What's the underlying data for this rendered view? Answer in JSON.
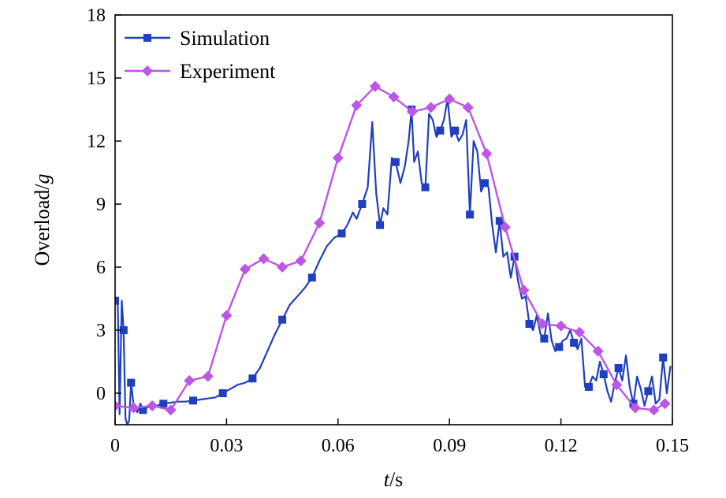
{
  "chart_data": {
    "type": "line",
    "xlabel_italic": "t",
    "xlabel_rest": "/s",
    "ylabel_main": "Overload/",
    "ylabel_italic": "g",
    "xlim": [
      0,
      0.15
    ],
    "ylim": [
      -1.5,
      18
    ],
    "xticks": [
      "0",
      "0.03",
      "0.06",
      "0.09",
      "0.12",
      "0.15"
    ],
    "xtick_values": [
      0,
      0.03,
      0.06,
      0.09,
      0.12,
      0.15
    ],
    "yticks": [
      "0",
      "3",
      "6",
      "9",
      "12",
      "15",
      "18"
    ],
    "ytick_values": [
      0,
      3,
      6,
      9,
      12,
      15,
      18
    ],
    "legend_position": "top-left",
    "grid": false,
    "series": [
      {
        "name": "Simulation",
        "color": "#1f3fbf",
        "marker": "square",
        "x": [
          0,
          0.0007,
          0.0012,
          0.0018,
          0.0023,
          0.0028,
          0.0033,
          0.0038,
          0.0043,
          0.005,
          0.006,
          0.0068,
          0.0075,
          0.0085,
          0.0095,
          0.011,
          0.013,
          0.015,
          0.017,
          0.019,
          0.021,
          0.023,
          0.025,
          0.027,
          0.029,
          0.031,
          0.033,
          0.035,
          0.037,
          0.039,
          0.041,
          0.043,
          0.045,
          0.047,
          0.049,
          0.051,
          0.053,
          0.055,
          0.057,
          0.059,
          0.061,
          0.0625,
          0.064,
          0.065,
          0.0665,
          0.068,
          0.0692,
          0.0703,
          0.0713,
          0.0722,
          0.0733,
          0.0745,
          0.0755,
          0.0768,
          0.078,
          0.079,
          0.0798,
          0.0805,
          0.0815,
          0.0825,
          0.0835,
          0.0845,
          0.0855,
          0.0865,
          0.0875,
          0.0885,
          0.0895,
          0.0905,
          0.0915,
          0.0925,
          0.0935,
          0.0945,
          0.0955,
          0.0965,
          0.0975,
          0.0985,
          0.0995,
          0.1005,
          0.1015,
          0.1025,
          0.1035,
          0.1045,
          0.1055,
          0.1065,
          0.1075,
          0.1085,
          0.1095,
          0.1105,
          0.1115,
          0.1125,
          0.1135,
          0.1145,
          0.1155,
          0.1165,
          0.1175,
          0.1185,
          0.1195,
          0.1205,
          0.1215,
          0.1225,
          0.1235,
          0.1245,
          0.1255,
          0.1265,
          0.1275,
          0.1285,
          0.1295,
          0.1305,
          0.1315,
          0.1325,
          0.1335,
          0.1345,
          0.1355,
          0.1365,
          0.1375,
          0.1385,
          0.1395,
          0.1405,
          0.1415,
          0.1425,
          0.1435,
          0.1445,
          0.1455,
          0.1465,
          0.1475,
          0.1485,
          0.1495
        ],
        "y": [
          4.4,
          4.5,
          -1.0,
          4.4,
          3.0,
          -1.2,
          -1.5,
          -1.3,
          0.5,
          -0.6,
          -0.9,
          -0.5,
          -0.8,
          -0.7,
          -0.6,
          -0.6,
          -0.5,
          -0.45,
          -0.4,
          -0.4,
          -0.35,
          -0.3,
          -0.25,
          -0.2,
          0.0,
          0.2,
          0.4,
          0.5,
          0.7,
          1.2,
          2.0,
          2.8,
          3.5,
          4.2,
          4.6,
          5.0,
          5.5,
          6.3,
          7.0,
          7.4,
          7.6,
          8.0,
          8.6,
          8.3,
          9.0,
          9.8,
          12.9,
          9.5,
          8.0,
          8.8,
          8.5,
          11.2,
          11.0,
          10.0,
          10.8,
          12.0,
          13.5,
          11.0,
          11.5,
          10.0,
          9.8,
          13.3,
          13.0,
          12.2,
          12.5,
          13.0,
          14.0,
          12.2,
          12.5,
          12.0,
          12.3,
          13.0,
          8.5,
          12.0,
          11.5,
          9.6,
          10.0,
          9.8,
          8.0,
          6.7,
          8.2,
          6.5,
          6.7,
          5.5,
          6.5,
          5.3,
          4.5,
          4.6,
          3.3,
          3.0,
          3.7,
          2.8,
          2.6,
          3.8,
          2.5,
          2.0,
          2.2,
          2.5,
          2.6,
          3.0,
          2.4,
          2.1,
          2.6,
          0.3,
          0.3,
          0.8,
          0.6,
          1.5,
          0.9,
          0.1,
          -0.4,
          0.5,
          1.2,
          0.6,
          1.8,
          0.3,
          -0.5,
          0.8,
          0.2,
          -0.6,
          0.1,
          0.8,
          -0.5,
          -0.3,
          1.7,
          0.0,
          1.3
        ]
      },
      {
        "name": "Experiment",
        "color": "#bd55e6",
        "marker": "diamond",
        "x": [
          0,
          0.005,
          0.01,
          0.015,
          0.02,
          0.025,
          0.03,
          0.035,
          0.04,
          0.045,
          0.05,
          0.055,
          0.06,
          0.065,
          0.07,
          0.075,
          0.08,
          0.085,
          0.09,
          0.095,
          0.1,
          0.105,
          0.11,
          0.115,
          0.12,
          0.125,
          0.13,
          0.135,
          0.14,
          0.145,
          0.148
        ],
        "y": [
          -0.6,
          -0.7,
          -0.6,
          -0.8,
          0.6,
          0.8,
          3.7,
          5.9,
          6.4,
          6.0,
          6.3,
          8.1,
          11.2,
          13.7,
          14.6,
          14.1,
          13.4,
          13.6,
          14.0,
          13.6,
          11.4,
          7.9,
          4.9,
          3.3,
          3.2,
          2.9,
          2.0,
          0.4,
          -0.7,
          -0.8,
          -0.5
        ]
      }
    ]
  }
}
